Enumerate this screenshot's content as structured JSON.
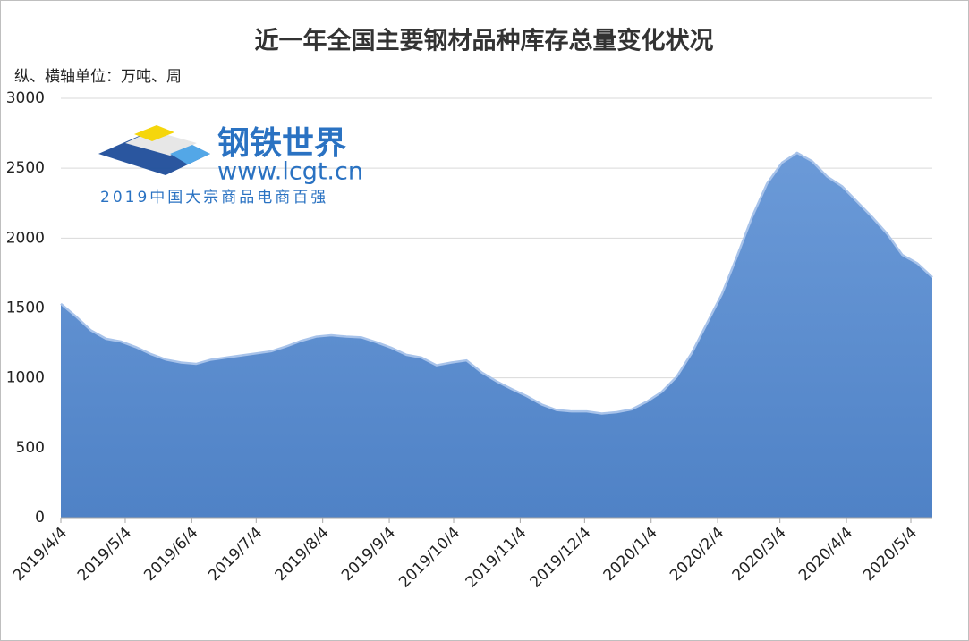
{
  "chart_data": {
    "type": "area",
    "title": "近一年全国主要钢材品种库存总量变化状况",
    "subtitle": "纵、横轴单位：万吨、周",
    "watermark": [
      "钢铁世界",
      "www.lcgt.cn",
      "2019中国大宗商品电商百强"
    ],
    "x": [
      "2019/4/4",
      "2019/4/11",
      "2019/4/18",
      "2019/4/25",
      "2019/5/2",
      "2019/5/9",
      "2019/5/16",
      "2019/5/23",
      "2019/5/30",
      "2019/6/6",
      "2019/6/13",
      "2019/6/20",
      "2019/6/27",
      "2019/7/4",
      "2019/7/11",
      "2019/7/18",
      "2019/7/25",
      "2019/8/1",
      "2019/8/8",
      "2019/8/15",
      "2019/8/22",
      "2019/8/29",
      "2019/9/5",
      "2019/9/12",
      "2019/9/19",
      "2019/9/26",
      "2019/10/3",
      "2019/10/10",
      "2019/10/17",
      "2019/10/24",
      "2019/10/31",
      "2019/11/7",
      "2019/11/14",
      "2019/11/21",
      "2019/11/28",
      "2019/12/5",
      "2019/12/12",
      "2019/12/19",
      "2019/12/26",
      "2020/1/2",
      "2020/1/9",
      "2020/1/16",
      "2020/1/23",
      "2020/1/30",
      "2020/2/6",
      "2020/2/13",
      "2020/2/20",
      "2020/2/27",
      "2020/3/5",
      "2020/3/12",
      "2020/3/19",
      "2020/3/26",
      "2020/4/2",
      "2020/4/9",
      "2020/4/16",
      "2020/4/23",
      "2020/4/30",
      "2020/5/7",
      "2020/5/14"
    ],
    "values": [
      1530,
      1440,
      1340,
      1280,
      1260,
      1220,
      1170,
      1130,
      1110,
      1100,
      1130,
      1145,
      1160,
      1175,
      1190,
      1225,
      1265,
      1295,
      1305,
      1295,
      1290,
      1255,
      1215,
      1165,
      1145,
      1090,
      1110,
      1125,
      1040,
      975,
      920,
      870,
      810,
      770,
      760,
      760,
      745,
      755,
      775,
      830,
      900,
      1010,
      1180,
      1390,
      1600,
      1870,
      2150,
      2390,
      2540,
      2610,
      2550,
      2440,
      2370,
      2260,
      2150,
      2030,
      1880,
      1820,
      1720
    ],
    "color": "#5b8ccf",
    "xlim": [
      "2019/4/4",
      "2020/5/14"
    ],
    "xticks": [
      "2019/4/4",
      "2019/5/4",
      "2019/6/4",
      "2019/7/4",
      "2019/8/4",
      "2019/9/4",
      "2019/10/4",
      "2019/11/4",
      "2019/12/4",
      "2020/1/4",
      "2020/2/4",
      "2020/3/4",
      "2020/4/4",
      "2020/5/4"
    ],
    "ylim": [
      0,
      3000
    ],
    "yticks": [
      0,
      500,
      1000,
      1500,
      2000,
      2500,
      3000
    ],
    "grid": true
  }
}
